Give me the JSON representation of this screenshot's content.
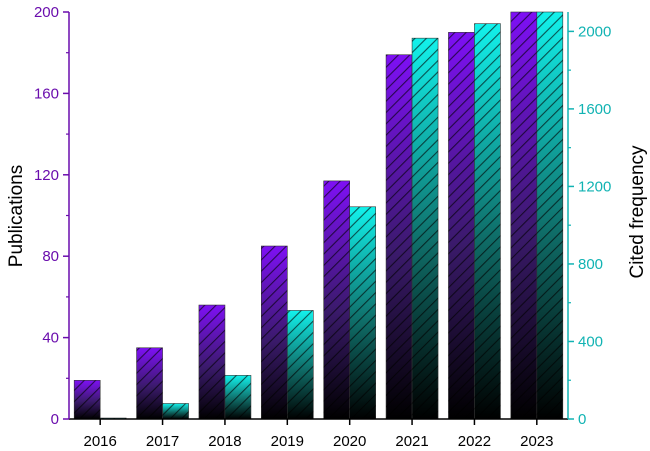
{
  "chart_data": {
    "type": "bar",
    "categories": [
      "2016",
      "2017",
      "2018",
      "2019",
      "2020",
      "2021",
      "2022",
      "2023"
    ],
    "series": [
      {
        "name": "Publications",
        "axis": "left",
        "values": [
          19,
          35,
          56,
          85,
          117,
          179,
          190,
          200
        ]
      },
      {
        "name": "Cited frequency",
        "axis": "right",
        "values": [
          5,
          80,
          225,
          560,
          1095,
          1965,
          2040,
          2100
        ]
      }
    ],
    "ylabel": "Publications",
    "ylabel_right": "Cited frequency",
    "ylim": [
      0,
      200
    ],
    "ylim_right": [
      0,
      2100
    ],
    "yticks": [
      "0",
      "40",
      "80",
      "120",
      "160",
      "200"
    ],
    "yticks_right": [
      "0",
      "400",
      "800",
      "1200",
      "1600",
      "2000"
    ],
    "grid": false,
    "colors": {
      "left_axis": "#6a0dad",
      "right_axis": "#11b3b3",
      "pub_bar_top": "#7e10f5",
      "cite_bar_top": "#12f2ec",
      "bar_bottom": "#000000"
    }
  }
}
